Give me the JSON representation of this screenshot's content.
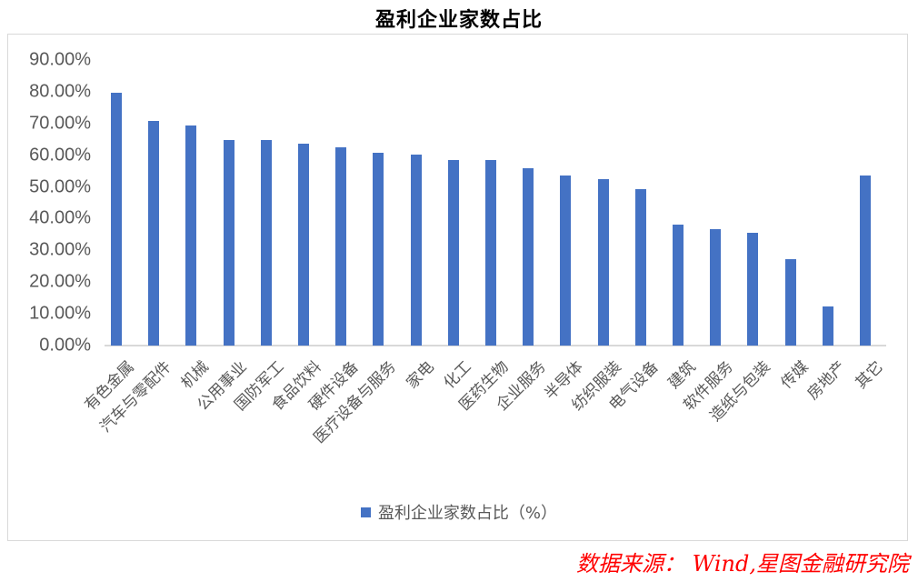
{
  "title": "盈利企业家数占比",
  "legend": {
    "label": "盈利企业家数占比（%）",
    "color": "#4472c4"
  },
  "source": "数据来源： Wind,星图金融研究院",
  "chart_data": {
    "type": "bar",
    "title": "盈利企业家数占比",
    "xlabel": "",
    "ylabel": "",
    "ylim": [
      0,
      90
    ],
    "yticks": [
      "0.00%",
      "10.00%",
      "20.00%",
      "30.00%",
      "40.00%",
      "50.00%",
      "60.00%",
      "70.00%",
      "80.00%",
      "90.00%"
    ],
    "grid": false,
    "legend_position": "bottom",
    "categories": [
      "有色金属",
      "汽车与零配件",
      "机械",
      "公用事业",
      "国防军工",
      "食品饮料",
      "硬件设备",
      "医疗设备与服务",
      "家电",
      "化工",
      "医药生物",
      "企业服务",
      "半导体",
      "纺织服装",
      "电气设备",
      "建筑",
      "软件服务",
      "造纸与包装",
      "传媒",
      "房地产",
      "其它"
    ],
    "series": [
      {
        "name": "盈利企业家数占比（%）",
        "color": "#4472c4",
        "values": [
          79.7,
          70.8,
          69.5,
          64.9,
          64.7,
          63.5,
          62.6,
          60.9,
          60.1,
          58.6,
          58.6,
          55.8,
          53.7,
          52.5,
          49.4,
          38.0,
          36.8,
          35.4,
          27.3,
          12.3,
          53.5
        ]
      }
    ]
  }
}
